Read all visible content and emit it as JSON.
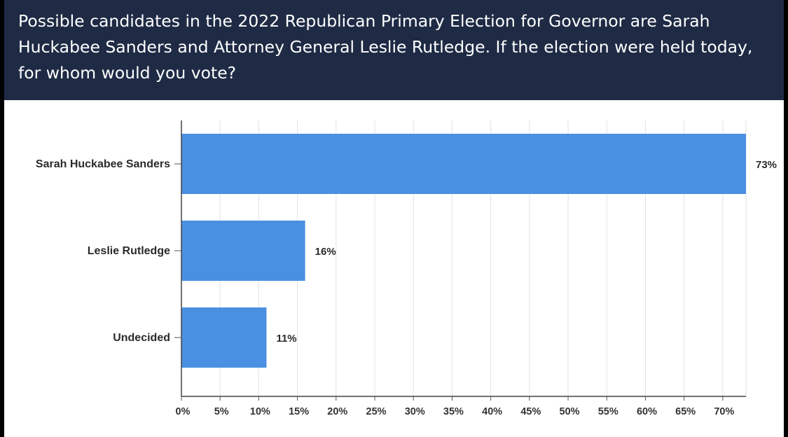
{
  "question": "Possible candidates in the 2022 Republican Primary Election for Governor are Sarah Huckabee Sanders and Attorney General Leslie Rutledge. If the election were held today, for whom would you vote?",
  "colors": {
    "header": "#1f2b45",
    "bar": "#4a90e2"
  },
  "chart_data": {
    "type": "bar",
    "orientation": "horizontal",
    "title": "Possible candidates in the 2022 Republican Primary Election for Governor are Sarah Huckabee Sanders and Attorney General Leslie Rutledge. If the election were held today, for whom would you vote?",
    "categories": [
      "Sarah Huckabee Sanders",
      "Leslie Rutledge",
      "Undecided"
    ],
    "values": [
      73,
      16,
      11
    ],
    "value_labels": [
      "73%",
      "16%",
      "11%"
    ],
    "xlim": [
      0,
      73
    ],
    "xticks": [
      0,
      5,
      10,
      15,
      20,
      25,
      30,
      35,
      40,
      45,
      50,
      55,
      60,
      65,
      70
    ],
    "xtick_labels": [
      "0%",
      "5%",
      "10%",
      "15%",
      "20%",
      "25%",
      "30%",
      "35%",
      "40%",
      "45%",
      "50%",
      "55%",
      "60%",
      "65%",
      "70%"
    ],
    "grid": true,
    "xlabel": "",
    "ylabel": ""
  }
}
